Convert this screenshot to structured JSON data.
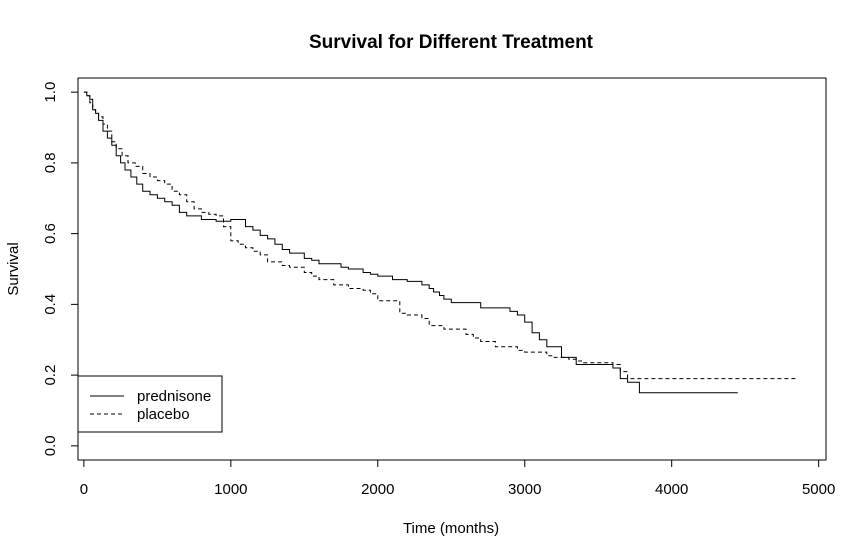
{
  "chart_data": {
    "type": "line",
    "step": true,
    "title": "Survival for Different Treatment",
    "xlabel": "Time (months)",
    "ylabel": "Survival",
    "xlim": [
      0,
      5000
    ],
    "ylim": [
      0,
      1
    ],
    "xticks": [
      "0",
      "1000",
      "2000",
      "3000",
      "4000",
      "5000"
    ],
    "yticks": [
      "0.0",
      "0.2",
      "0.4",
      "0.6",
      "0.8",
      "1.0"
    ],
    "grid": false,
    "legend": {
      "position": "bottom-left"
    },
    "series": [
      {
        "name": "prednisone",
        "line_style": "solid",
        "x": [
          0,
          20,
          40,
          60,
          80,
          100,
          130,
          160,
          190,
          220,
          250,
          280,
          320,
          360,
          400,
          450,
          500,
          550,
          600,
          650,
          700,
          800,
          900,
          1000,
          1100,
          1150,
          1200,
          1250,
          1300,
          1350,
          1400,
          1500,
          1550,
          1600,
          1750,
          1800,
          1900,
          1950,
          2000,
          2100,
          2200,
          2300,
          2350,
          2380,
          2420,
          2450,
          2500,
          2700,
          2900,
          2950,
          3000,
          3050,
          3100,
          3150,
          3250,
          3350,
          3600,
          3650,
          3700,
          3780,
          4450
        ],
        "y": [
          1.0,
          0.99,
          0.98,
          0.95,
          0.94,
          0.92,
          0.89,
          0.87,
          0.85,
          0.82,
          0.8,
          0.78,
          0.76,
          0.74,
          0.72,
          0.71,
          0.7,
          0.69,
          0.68,
          0.66,
          0.65,
          0.64,
          0.635,
          0.64,
          0.62,
          0.61,
          0.595,
          0.585,
          0.57,
          0.555,
          0.545,
          0.53,
          0.525,
          0.515,
          0.505,
          0.5,
          0.49,
          0.485,
          0.48,
          0.47,
          0.465,
          0.455,
          0.445,
          0.435,
          0.425,
          0.415,
          0.405,
          0.39,
          0.38,
          0.37,
          0.35,
          0.32,
          0.3,
          0.28,
          0.25,
          0.23,
          0.22,
          0.19,
          0.18,
          0.15,
          0.15
        ]
      },
      {
        "name": "placebo",
        "line_style": "dashed",
        "x": [
          0,
          20,
          40,
          60,
          80,
          100,
          130,
          160,
          190,
          220,
          260,
          300,
          350,
          400,
          450,
          500,
          550,
          600,
          650,
          700,
          750,
          800,
          850,
          900,
          950,
          1000,
          1050,
          1100,
          1150,
          1200,
          1250,
          1350,
          1400,
          1500,
          1550,
          1600,
          1700,
          1800,
          1900,
          1950,
          2000,
          2150,
          2200,
          2300,
          2350,
          2450,
          2600,
          2650,
          2700,
          2800,
          2950,
          3000,
          3150,
          3200,
          3300,
          3350,
          3400,
          3600,
          3650,
          3700,
          4850
        ],
        "y": [
          1.0,
          0.99,
          0.97,
          0.95,
          0.94,
          0.93,
          0.91,
          0.89,
          0.86,
          0.84,
          0.82,
          0.8,
          0.79,
          0.77,
          0.76,
          0.75,
          0.74,
          0.72,
          0.71,
          0.69,
          0.67,
          0.66,
          0.655,
          0.65,
          0.62,
          0.58,
          0.57,
          0.56,
          0.55,
          0.54,
          0.52,
          0.51,
          0.505,
          0.49,
          0.48,
          0.47,
          0.455,
          0.445,
          0.44,
          0.43,
          0.41,
          0.375,
          0.37,
          0.36,
          0.34,
          0.33,
          0.315,
          0.305,
          0.295,
          0.28,
          0.27,
          0.265,
          0.255,
          0.25,
          0.245,
          0.24,
          0.235,
          0.23,
          0.21,
          0.19,
          0.19
        ]
      }
    ]
  }
}
